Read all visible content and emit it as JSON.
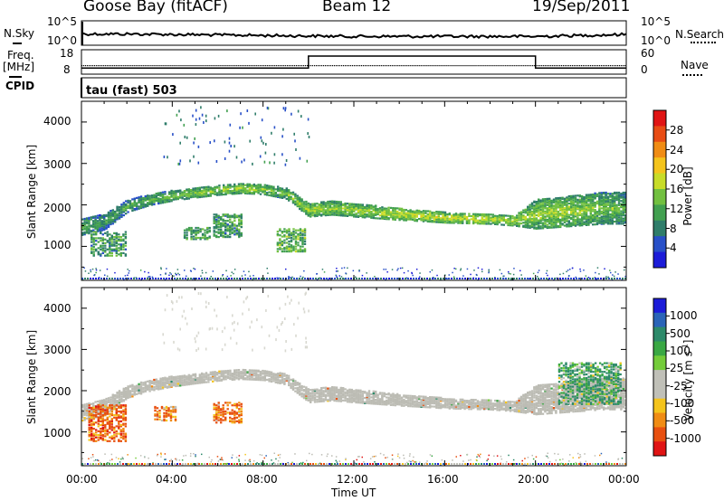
{
  "header": {
    "station": "Goose Bay (fitACF)",
    "beam": "Beam 12",
    "date": "19/Sep/2011"
  },
  "strip_labels": {
    "nsky": "N.Sky",
    "nsearch": "N.Search",
    "freq_top": "Freq.",
    "freq_unit": "[MHz]",
    "nave": "Nave",
    "cpid": "CPID",
    "cpid_value": "tau (fast) 503"
  },
  "strip_ticks": {
    "noise_left": [
      "10^5",
      "10^0"
    ],
    "noise_right": [
      "10^5",
      "10^0"
    ],
    "freq_left": [
      "18",
      "8"
    ],
    "nave_right": [
      "60",
      "0"
    ]
  },
  "colors": {
    "power_scale": [
      "#1c1cd8",
      "#2850c8",
      "#2f7d6a",
      "#42a050",
      "#72c040",
      "#c8dc28",
      "#f4c41c",
      "#f08c14",
      "#e84c14",
      "#e01414"
    ],
    "velocity_scale": [
      "#1c1cd8",
      "#2a64b8",
      "#2d8a6a",
      "#3aa844",
      "#74cc3a",
      "#c0c0b8",
      "#c0c0b8",
      "#f4c41c",
      "#f08c14",
      "#e85010",
      "#e01414"
    ],
    "ground_grey": "#bcbcb4"
  },
  "chart_data": [
    {
      "type": "line",
      "title": "N.Sky / N.Search",
      "x": [
        "00:00",
        "02:00",
        "04:00",
        "06:00",
        "08:00",
        "10:00",
        "12:00",
        "14:00",
        "16:00",
        "18:00",
        "20:00",
        "22:00",
        "24:00"
      ],
      "series": [
        {
          "name": "N.Sky",
          "values": [
            2.3,
            2.3,
            2.2,
            2.1,
            2.0,
            1.9,
            1.8,
            1.8,
            1.8,
            1.8,
            1.8,
            2.0,
            2.2
          ]
        }
      ],
      "yscale": "log",
      "ylim_exponent": [
        0,
        5
      ]
    },
    {
      "type": "line",
      "title": "Freq. / Nave",
      "x": [
        "00:00",
        "10:00",
        "10:00",
        "20:00",
        "20:00",
        "24:00"
      ],
      "series": [
        {
          "name": "Freq.",
          "values": [
            10.4,
            10.4,
            10.4,
            10.4,
            10.4,
            10.4
          ]
        },
        {
          "name": "Nave",
          "values": [
            18,
            18,
            60,
            60,
            18,
            18
          ]
        }
      ],
      "ylim_left": [
        8,
        18
      ],
      "ylim_right": [
        0,
        60
      ]
    },
    {
      "type": "heatmap",
      "ylabel": "Slant Range [km]",
      "colorbar_label": "Power [dB]",
      "colorbar_ticks": [
        "4",
        "8",
        "12",
        "16",
        "20",
        "24",
        "28"
      ],
      "ylim": [
        180,
        4500
      ],
      "yticks": [
        "1000",
        "2000",
        "3000",
        "4000"
      ],
      "x_hours": [
        0,
        1,
        2,
        3,
        4,
        5,
        6,
        7,
        8,
        9,
        10,
        11,
        12,
        13,
        14,
        15,
        16,
        17,
        18,
        19,
        20,
        21,
        22,
        23,
        24
      ],
      "band_center_km": [
        1500,
        1620,
        2000,
        2150,
        2250,
        2320,
        2380,
        2420,
        2400,
        2300,
        1900,
        1950,
        1900,
        1850,
        1800,
        1760,
        1720,
        1700,
        1680,
        1640,
        1800,
        1850,
        1900,
        1950,
        1950
      ],
      "band_thickness_km": [
        400,
        380,
        300,
        260,
        250,
        240,
        230,
        230,
        240,
        260,
        320,
        330,
        320,
        300,
        280,
        260,
        250,
        240,
        230,
        230,
        700,
        720,
        740,
        760,
        760
      ],
      "band_power_db": [
        10,
        8,
        9,
        10,
        11,
        12,
        12,
        13,
        12,
        11,
        13,
        12,
        13,
        13,
        14,
        14,
        14,
        15,
        14,
        13,
        12,
        13,
        12,
        11,
        10
      ],
      "patches": [
        {
          "hours": [
            0.4,
            2.0
          ],
          "range_km": [
            800,
            1400
          ],
          "power_db": 10
        },
        {
          "hours": [
            4.5,
            5.6
          ],
          "range_km": [
            1200,
            1500
          ],
          "power_db": 11
        },
        {
          "hours": [
            5.8,
            7.0
          ],
          "range_km": [
            1250,
            1800
          ],
          "power_db": 10
        },
        {
          "hours": [
            8.6,
            9.8
          ],
          "range_km": [
            900,
            1450
          ],
          "power_db": 12
        }
      ]
    },
    {
      "type": "heatmap",
      "ylabel": "Slant Range [km]",
      "xlabel": "Time UT",
      "xticks": [
        "00:00",
        "04:00",
        "08:00",
        "12:00",
        "16:00",
        "20:00",
        "00:00"
      ],
      "colorbar_label": "Velocity [m s^-1]",
      "colorbar_ticks": [
        "1000",
        "500",
        "100",
        "25",
        "-25",
        "-100",
        "-500",
        "-1000"
      ],
      "ylim": [
        180,
        4500
      ],
      "yticks": [
        "1000",
        "2000",
        "3000",
        "4000"
      ],
      "ground_scatter_band": "same as power panel band (grey)",
      "patches": [
        {
          "hours": [
            0.3,
            2.0
          ],
          "range_km": [
            800,
            1700
          ],
          "velocity": -300
        },
        {
          "hours": [
            3.2,
            4.2
          ],
          "range_km": [
            1300,
            1650
          ],
          "velocity": -200
        },
        {
          "hours": [
            5.8,
            7.0
          ],
          "range_km": [
            1250,
            1750
          ],
          "velocity": -250
        },
        {
          "hours": [
            21.0,
            23.8
          ],
          "range_km": [
            1700,
            2700
          ],
          "velocity": 200
        }
      ]
    }
  ]
}
